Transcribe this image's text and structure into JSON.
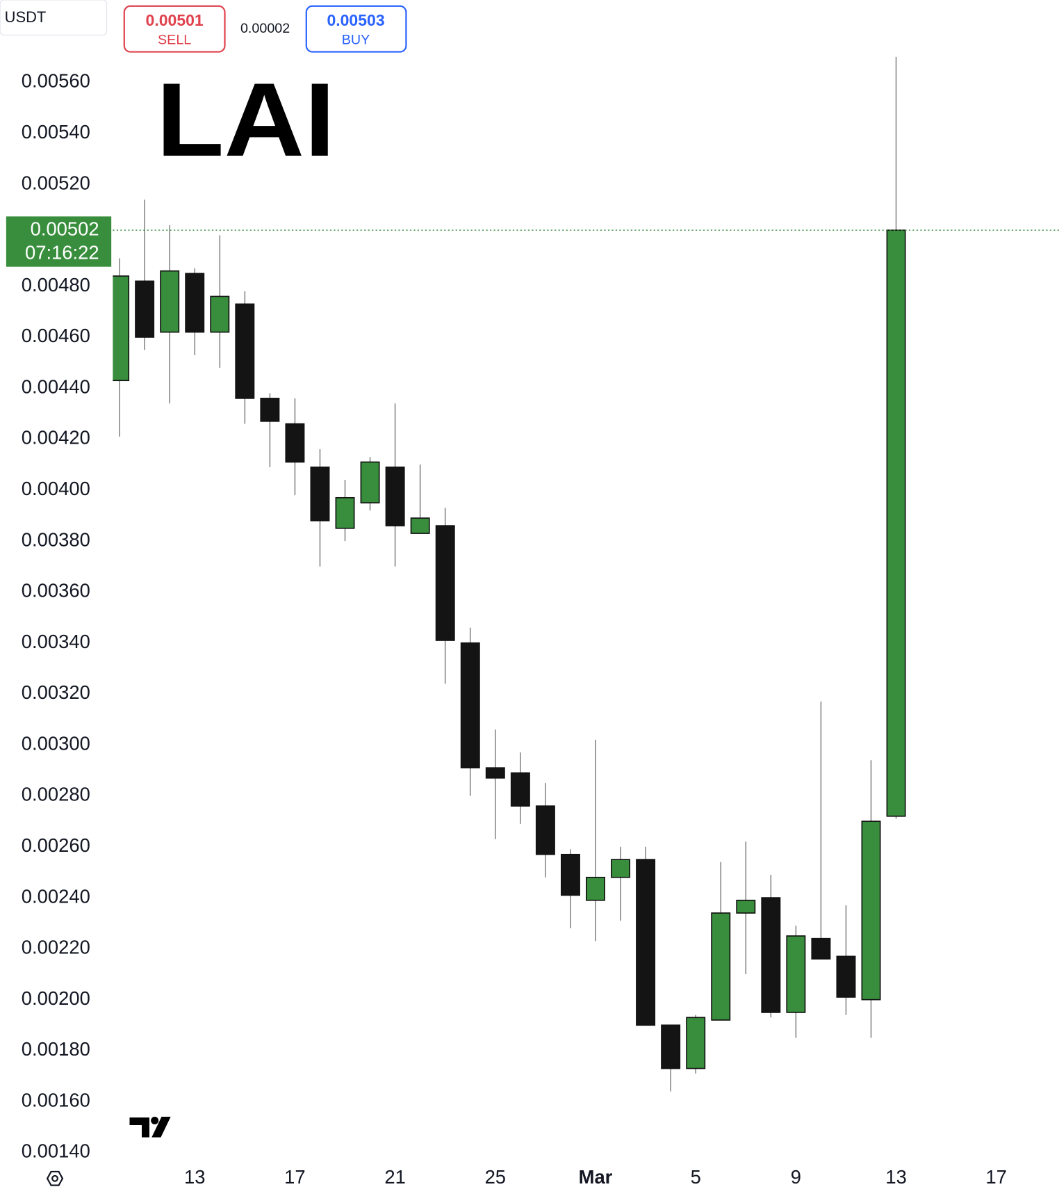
{
  "toolbar": {
    "quote": "USDT",
    "sell": {
      "price": "0.00501",
      "label": "SELL"
    },
    "spread": "0.00002",
    "buy": {
      "price": "0.00503",
      "label": "BUY"
    }
  },
  "chart_data": {
    "type": "candlestick",
    "title": "LAI",
    "up_color": "#388e3c",
    "down_color": "#141414",
    "wick_color": "#8a8a8a",
    "series": [
      {
        "open": [
          0.00443,
          0.00482,
          0.00462,
          0.00485,
          0.00462,
          0.00473,
          0.00436,
          0.00426,
          0.00409,
          0.00385,
          0.00395,
          0.00409,
          0.00383,
          0.00386,
          0.0034,
          0.00291,
          0.00289,
          0.00276,
          0.00257,
          0.00239,
          0.00248,
          0.00255,
          0.0019,
          0.00173,
          0.00192,
          0.00234,
          0.0024,
          0.00195,
          0.00224,
          0.00217,
          0.002,
          0.00272
        ],
        "high": [
          0.00491,
          0.00514,
          0.00504,
          0.00487,
          0.005,
          0.00478,
          0.00438,
          0.00436,
          0.00416,
          0.00404,
          0.00413,
          0.00434,
          0.0041,
          0.00393,
          0.00346,
          0.00306,
          0.00297,
          0.00285,
          0.00259,
          0.00302,
          0.0026,
          0.0026,
          0.0019,
          0.00194,
          0.00254,
          0.00262,
          0.00249,
          0.00229,
          0.00317,
          0.00237,
          0.00294,
          0.0057
        ],
        "low": [
          0.00421,
          0.00455,
          0.00434,
          0.00453,
          0.00448,
          0.00426,
          0.00409,
          0.00398,
          0.0037,
          0.0038,
          0.00392,
          0.0037,
          0.00383,
          0.00324,
          0.0028,
          0.00263,
          0.00269,
          0.00248,
          0.00228,
          0.00223,
          0.00231,
          0.0019,
          0.00164,
          0.00171,
          0.00192,
          0.0021,
          0.00193,
          0.00185,
          0.00216,
          0.00194,
          0.00185,
          0.00271
        ],
        "close": [
          0.00484,
          0.0046,
          0.00486,
          0.00462,
          0.00476,
          0.00436,
          0.00427,
          0.00411,
          0.00388,
          0.00397,
          0.00411,
          0.00386,
          0.00389,
          0.00341,
          0.00291,
          0.00287,
          0.00276,
          0.00257,
          0.00241,
          0.00248,
          0.00255,
          0.0019,
          0.00173,
          0.00193,
          0.00234,
          0.00239,
          0.00195,
          0.00225,
          0.00216,
          0.00201,
          0.0027,
          0.00502
        ]
      }
    ],
    "last_price": 0.00502,
    "last_price_color": "#388e3c",
    "countdown": "07:16:22",
    "ylim": [
      0.001376,
      0.005714
    ],
    "yticks": [
      {
        "value": 0.0014,
        "label": "0.00140"
      },
      {
        "value": 0.0016,
        "label": "0.00160"
      },
      {
        "value": 0.0018,
        "label": "0.00180"
      },
      {
        "value": 0.002,
        "label": "0.00200"
      },
      {
        "value": 0.0022,
        "label": "0.00220"
      },
      {
        "value": 0.0024,
        "label": "0.00240"
      },
      {
        "value": 0.0026,
        "label": "0.00260"
      },
      {
        "value": 0.0028,
        "label": "0.00280"
      },
      {
        "value": 0.003,
        "label": "0.00300"
      },
      {
        "value": 0.0032,
        "label": "0.00320"
      },
      {
        "value": 0.0034,
        "label": "0.00340"
      },
      {
        "value": 0.0036,
        "label": "0.00360"
      },
      {
        "value": 0.0038,
        "label": "0.00380"
      },
      {
        "value": 0.004,
        "label": "0.00400"
      },
      {
        "value": 0.0042,
        "label": "0.00420"
      },
      {
        "value": 0.0044,
        "label": "0.00440"
      },
      {
        "value": 0.0046,
        "label": "0.00460"
      },
      {
        "value": 0.0048,
        "label": "0.00480"
      },
      {
        "value": 0.0052,
        "label": "0.00520"
      },
      {
        "value": 0.0054,
        "label": "0.00540"
      },
      {
        "value": 0.0056,
        "label": "0.00560"
      }
    ],
    "xlim": [
      -0.27,
      37.5
    ],
    "xticks": [
      {
        "value": 3,
        "label": "13"
      },
      {
        "value": 7,
        "label": "17"
      },
      {
        "value": 11,
        "label": "21"
      },
      {
        "value": 15,
        "label": "25"
      },
      {
        "value": 19,
        "label": "Mar"
      },
      {
        "value": 23,
        "label": "5"
      },
      {
        "value": 27,
        "label": "9"
      },
      {
        "value": 31,
        "label": "13"
      },
      {
        "value": 35,
        "label": "17"
      }
    ],
    "grid": false
  }
}
